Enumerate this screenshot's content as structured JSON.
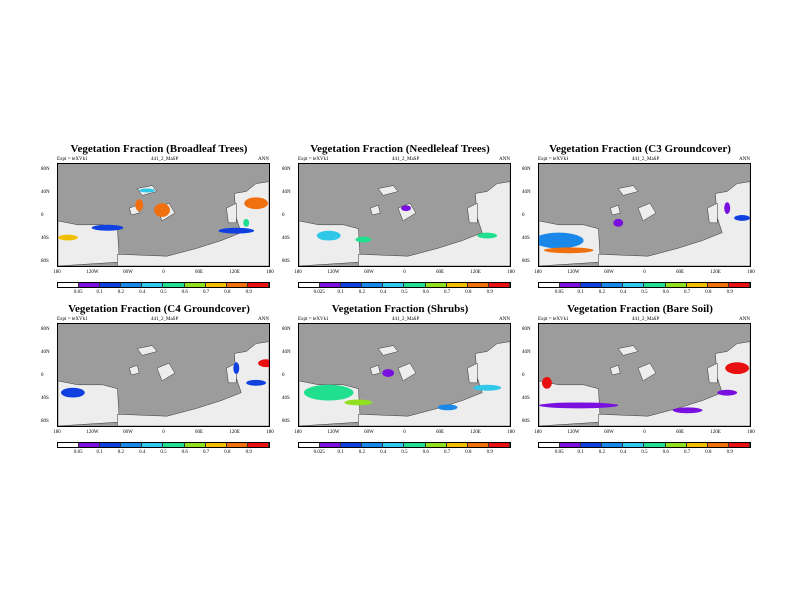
{
  "colors": {
    "ocean": "#9c9c9c",
    "land": "#ededed",
    "scale": [
      "#ffffff",
      "#7a10e0",
      "#1040e0",
      "#1a88e8",
      "#30c8e8",
      "#20e090",
      "#90e020",
      "#f0c000",
      "#f07010",
      "#e81010"
    ]
  },
  "common": {
    "expt": "Expt = teXVk1",
    "run": "441_2_MaSP",
    "season": "ANN",
    "ylabels": [
      "80N",
      "40N",
      "0",
      "40S",
      "80S"
    ],
    "xlabels": [
      "180",
      "120W",
      "60W",
      "0",
      "60E",
      "120E",
      "180"
    ]
  },
  "panels": [
    {
      "title": "Vegetation Fraction (Broadleaf Trees)",
      "cbar_labels": [
        "0.05",
        "0.1",
        "0.2",
        "0.4",
        "0.5",
        "0.6",
        "0.7",
        "0.8",
        "0.9"
      ]
    },
    {
      "title": "Vegetation Fraction (Needleleaf Trees)",
      "cbar_labels": [
        "0.025",
        "0.1",
        "0.2",
        "0.4",
        "0.5",
        "0.6",
        "0.7",
        "0.8",
        "0.9"
      ]
    },
    {
      "title": "Vegetation Fraction (C3 Groundcover)",
      "cbar_labels": [
        "0.05",
        "0.1",
        "0.2",
        "0.4",
        "0.5",
        "0.6",
        "0.7",
        "0.8",
        "0.9"
      ]
    },
    {
      "title": "Vegetation Fraction (C4 Groundcover)",
      "cbar_labels": [
        "0.05",
        "0.1",
        "0.2",
        "0.4",
        "0.5",
        "0.6",
        "0.7",
        "0.8",
        "0.9"
      ]
    },
    {
      "title": "Vegetation Fraction (Shrubs)",
      "cbar_labels": [
        "0.025",
        "0.1",
        "0.2",
        "0.4",
        "0.5",
        "0.6",
        "0.7",
        "0.8",
        "0.9"
      ]
    },
    {
      "title": "Vegetation Fraction (Bare Soil)",
      "cbar_labels": [
        "0.05",
        "0.1",
        "0.2",
        "0.4",
        "0.5",
        "0.6",
        "0.7",
        "0.8",
        "0.9"
      ]
    }
  ]
}
